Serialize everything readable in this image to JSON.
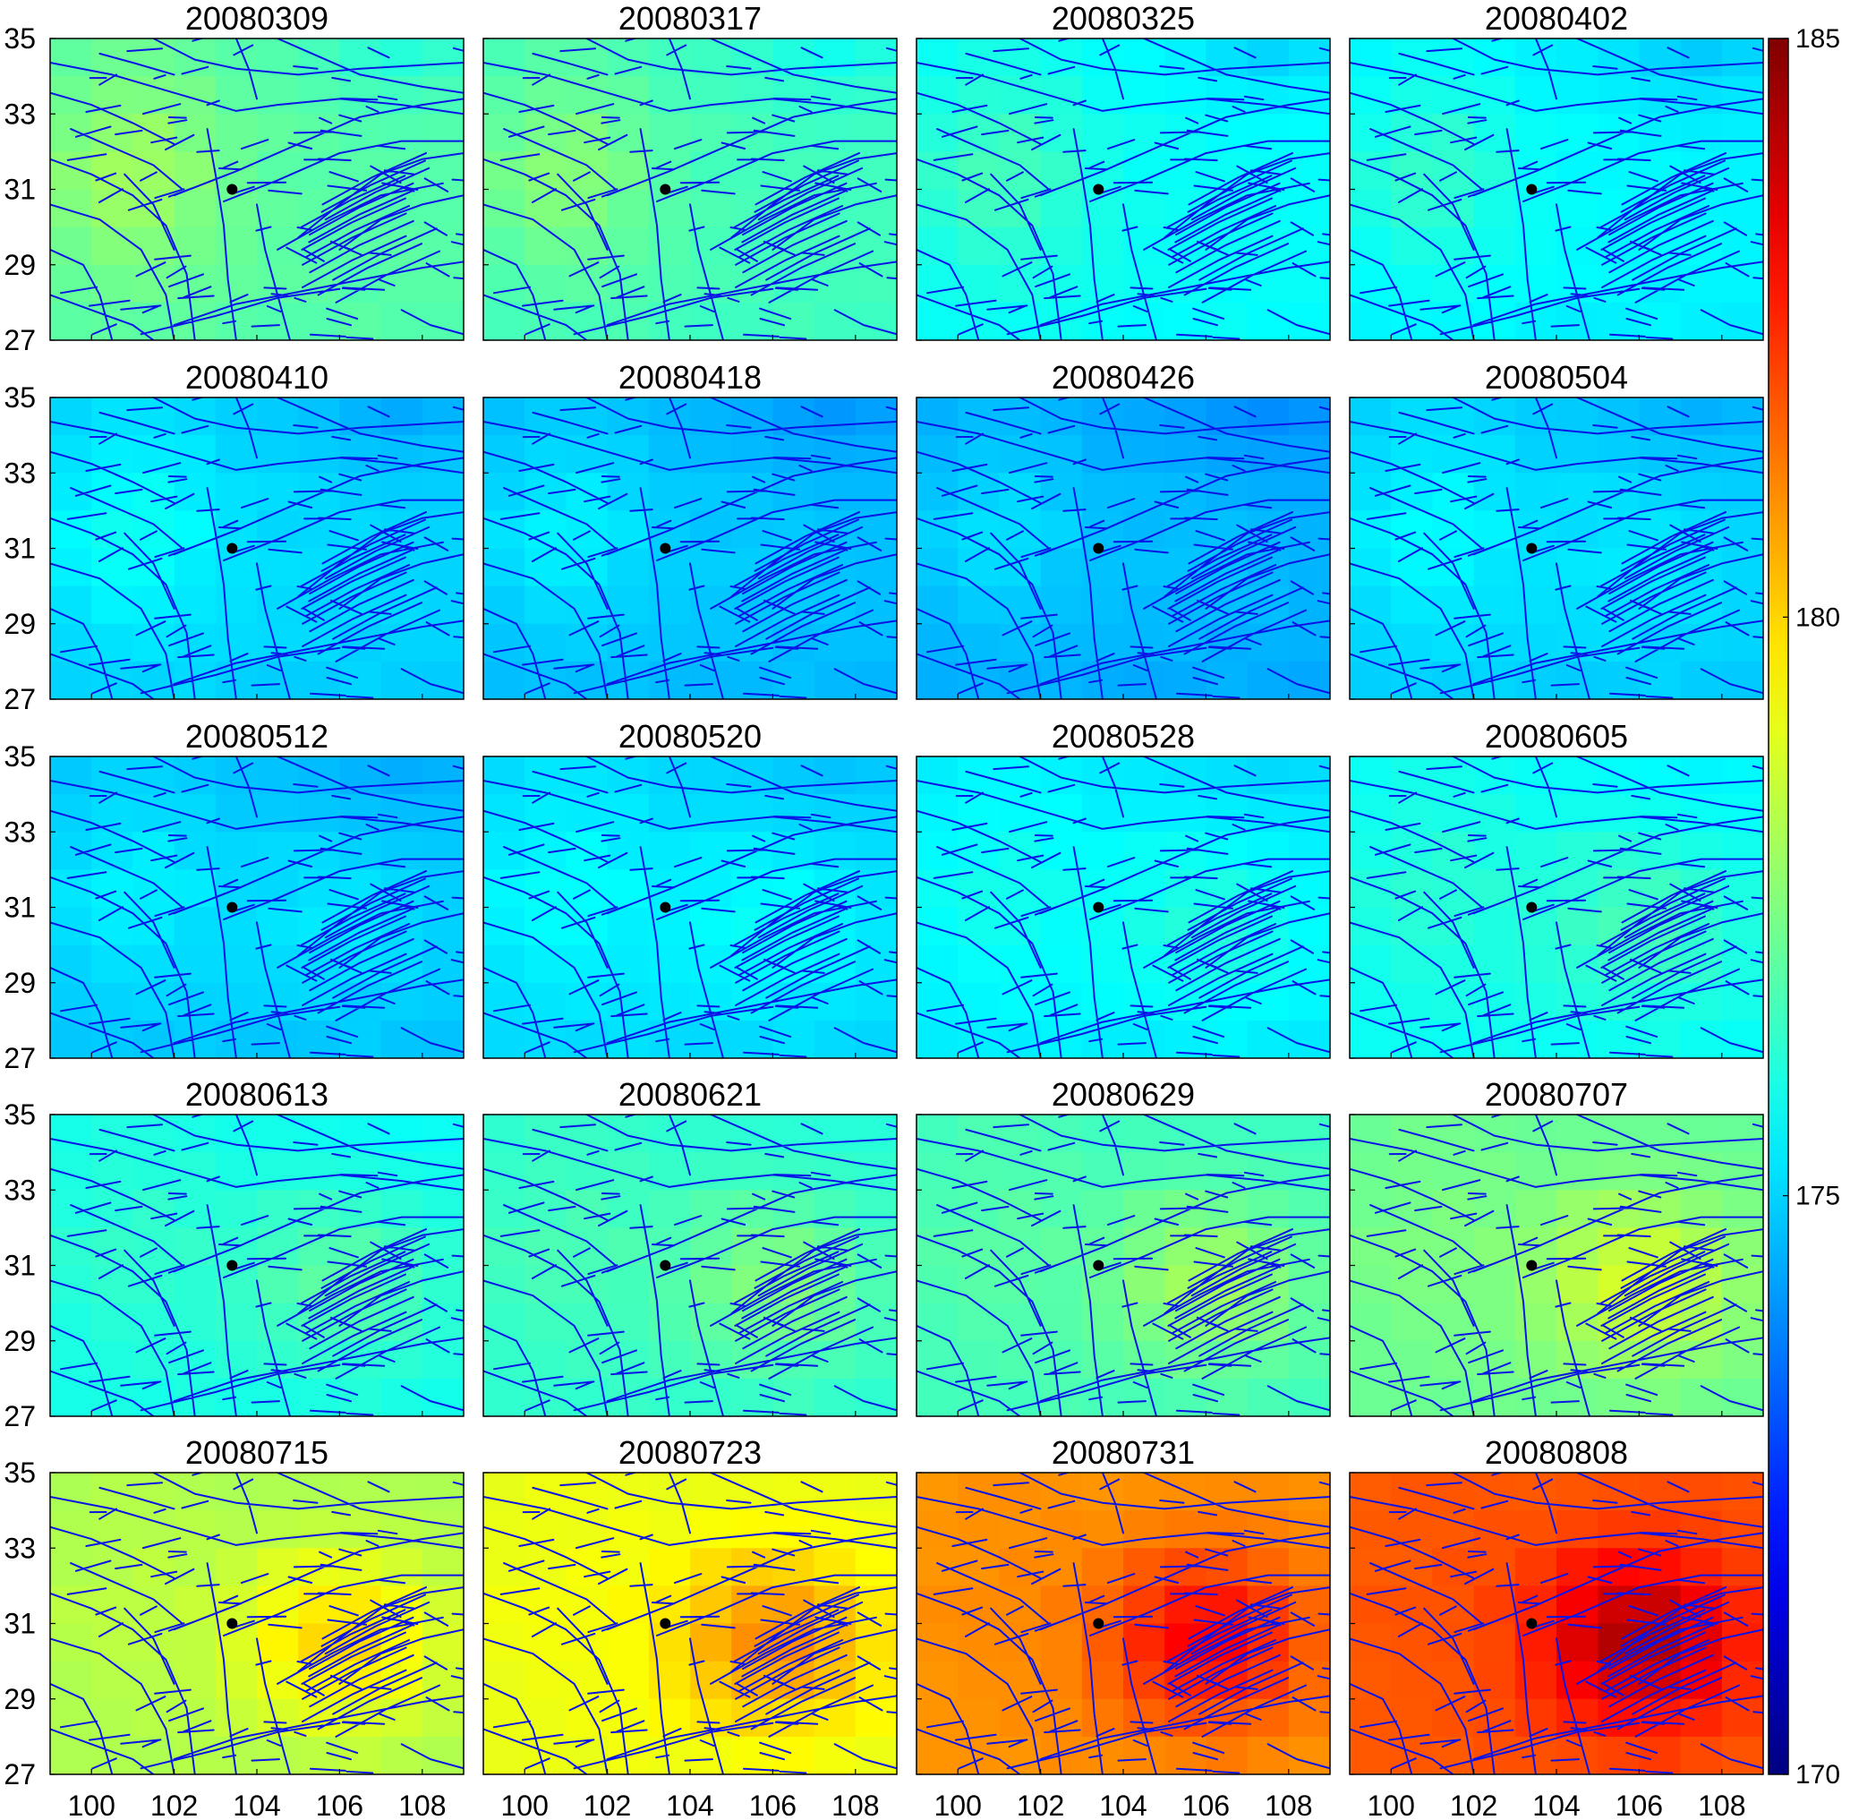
{
  "figure": {
    "rows": 5,
    "cols": 4,
    "panels": [
      "20080309",
      "20080317",
      "20080325",
      "20080402",
      "20080410",
      "20080418",
      "20080426",
      "20080504",
      "20080512",
      "20080520",
      "20080528",
      "20080605",
      "20080613",
      "20080621",
      "20080629",
      "20080707",
      "20080715",
      "20080723",
      "20080731",
      "20080808"
    ]
  },
  "axes": {
    "lon_ticks": [
      "100",
      "102",
      "104",
      "106",
      "108"
    ],
    "lon_values": [
      100,
      102,
      104,
      106,
      108
    ],
    "lat_ticks": [
      "35",
      "33",
      "31",
      "29",
      "27"
    ],
    "lat_values": [
      35,
      33,
      31,
      29,
      27
    ],
    "lon_range": [
      99,
      109
    ],
    "lat_range": [
      27,
      35
    ]
  },
  "colorbar": {
    "min": 170,
    "max": 185,
    "ticks": [
      "185",
      "180",
      "175",
      "170"
    ],
    "tick_values": [
      185,
      180,
      175,
      170
    ],
    "colormap": "jet"
  },
  "panel_levels": [
    176.9,
    176.6,
    175.7,
    175.5,
    175.0,
    174.7,
    174.5,
    175.0,
    174.9,
    175.2,
    175.5,
    175.9,
    176.1,
    176.5,
    176.8,
    177.4,
    178.4,
    179.3,
    181.2,
    182.1
  ],
  "epicenter": {
    "lon": 103.4,
    "lat": 31.0
  },
  "fault_color": "#0a14e6",
  "marker_color": "#000000",
  "frame_color": "#000000"
}
